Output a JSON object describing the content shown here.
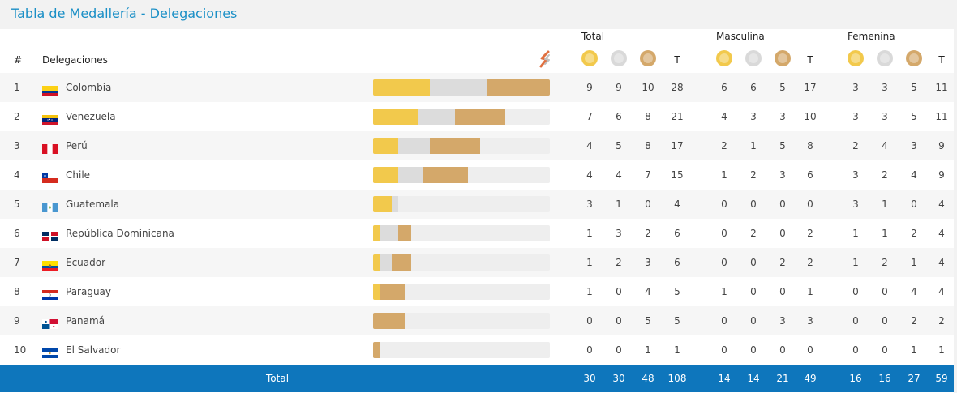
{
  "title": "Tabla de Medallería - Delegaciones",
  "groups": {
    "total": "Total",
    "masculina": "Masculina",
    "femenina": "Femenina"
  },
  "headers": {
    "rank": "#",
    "delegation": "Delegaciones",
    "t": "T"
  },
  "colors": {
    "gold": "#f2c94c",
    "silver": "#dcdcdc",
    "bronze": "#d4a86a",
    "footer": "#0e76bc",
    "title": "#1a8fc6"
  },
  "rows": [
    {
      "rank": "1",
      "name": "Colombia",
      "flag": "colombia-flag",
      "total": [
        "9",
        "9",
        "10",
        "28"
      ],
      "masc": [
        "6",
        "6",
        "5",
        "17"
      ],
      "fem": [
        "3",
        "3",
        "5",
        "11"
      ]
    },
    {
      "rank": "2",
      "name": "Venezuela",
      "flag": "venezuela-flag",
      "total": [
        "7",
        "6",
        "8",
        "21"
      ],
      "masc": [
        "4",
        "3",
        "3",
        "10"
      ],
      "fem": [
        "3",
        "3",
        "5",
        "11"
      ]
    },
    {
      "rank": "3",
      "name": "Perú",
      "flag": "peru-flag",
      "total": [
        "4",
        "5",
        "8",
        "17"
      ],
      "masc": [
        "2",
        "1",
        "5",
        "8"
      ],
      "fem": [
        "2",
        "4",
        "3",
        "9"
      ]
    },
    {
      "rank": "4",
      "name": "Chile",
      "flag": "chile-flag",
      "total": [
        "4",
        "4",
        "7",
        "15"
      ],
      "masc": [
        "1",
        "2",
        "3",
        "6"
      ],
      "fem": [
        "3",
        "2",
        "4",
        "9"
      ]
    },
    {
      "rank": "5",
      "name": "Guatemala",
      "flag": "guatemala-flag",
      "total": [
        "3",
        "1",
        "0",
        "4"
      ],
      "masc": [
        "0",
        "0",
        "0",
        "0"
      ],
      "fem": [
        "3",
        "1",
        "0",
        "4"
      ]
    },
    {
      "rank": "6",
      "name": "República Dominicana",
      "flag": "dominican-republic-flag",
      "total": [
        "1",
        "3",
        "2",
        "6"
      ],
      "masc": [
        "0",
        "2",
        "0",
        "2"
      ],
      "fem": [
        "1",
        "1",
        "2",
        "4"
      ]
    },
    {
      "rank": "7",
      "name": "Ecuador",
      "flag": "ecuador-flag",
      "total": [
        "1",
        "2",
        "3",
        "6"
      ],
      "masc": [
        "0",
        "0",
        "2",
        "2"
      ],
      "fem": [
        "1",
        "2",
        "1",
        "4"
      ]
    },
    {
      "rank": "8",
      "name": "Paraguay",
      "flag": "paraguay-flag",
      "total": [
        "1",
        "0",
        "4",
        "5"
      ],
      "masc": [
        "1",
        "0",
        "0",
        "1"
      ],
      "fem": [
        "0",
        "0",
        "4",
        "4"
      ]
    },
    {
      "rank": "9",
      "name": "Panamá",
      "flag": "panama-flag",
      "total": [
        "0",
        "0",
        "5",
        "5"
      ],
      "masc": [
        "0",
        "0",
        "3",
        "3"
      ],
      "fem": [
        "0",
        "0",
        "2",
        "2"
      ]
    },
    {
      "rank": "10",
      "name": "El Salvador",
      "flag": "el-salvador-flag",
      "total": [
        "0",
        "0",
        "1",
        "1"
      ],
      "masc": [
        "0",
        "0",
        "0",
        "0"
      ],
      "fem": [
        "0",
        "0",
        "1",
        "1"
      ]
    }
  ],
  "footer": {
    "label": "Total",
    "total": [
      "30",
      "30",
      "48",
      "108"
    ],
    "masc": [
      "14",
      "14",
      "21",
      "49"
    ],
    "fem": [
      "16",
      "16",
      "27",
      "59"
    ]
  }
}
